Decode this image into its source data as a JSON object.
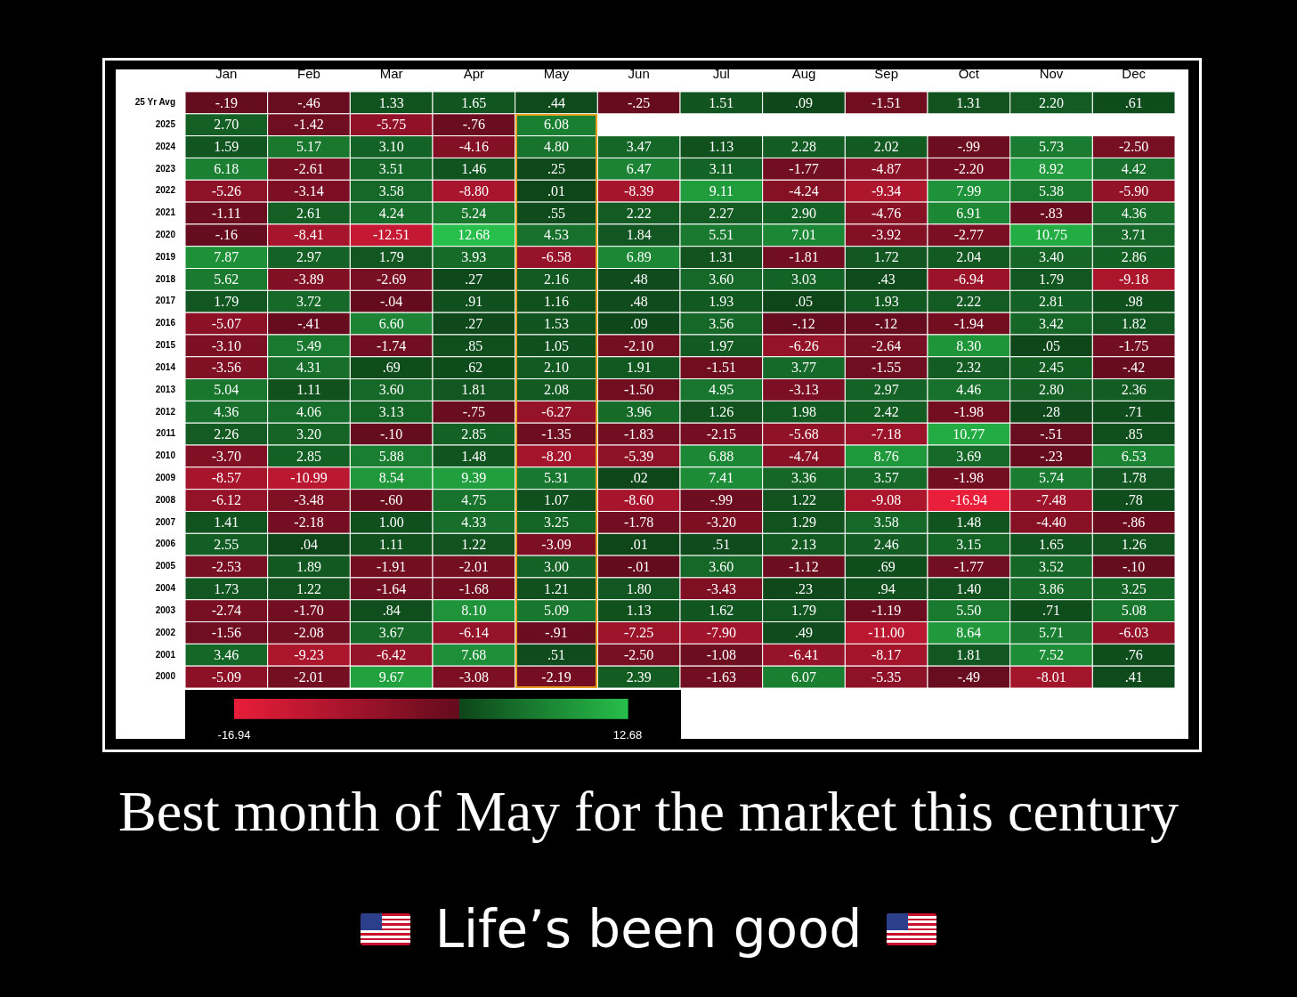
{
  "chart_data": {
    "type": "heatmap",
    "title": "Best month of May for the market this century",
    "subtitle": "Life’s been good",
    "categories": [
      "Jan",
      "Feb",
      "Mar",
      "Apr",
      "May",
      "Jun",
      "Jul",
      "Aug",
      "Sep",
      "Oct",
      "Nov",
      "Dec"
    ],
    "y_categories": [
      "25 Yr Avg",
      "2025",
      "2024",
      "2023",
      "2022",
      "2021",
      "2020",
      "2019",
      "2018",
      "2017",
      "2016",
      "2015",
      "2014",
      "2013",
      "2012",
      "2011",
      "2010",
      "2009",
      "2008",
      "2007",
      "2006",
      "2005",
      "2004",
      "2003",
      "2002",
      "2001",
      "2000"
    ],
    "cells": [
      [
        -0.19,
        -0.46,
        1.33,
        1.65,
        0.44,
        -0.25,
        1.51,
        0.09,
        -1.51,
        1.31,
        2.2,
        0.61
      ],
      [
        2.7,
        -1.42,
        -5.75,
        -0.76,
        6.08,
        null,
        null,
        null,
        null,
        null,
        null,
        null
      ],
      [
        1.59,
        5.17,
        3.1,
        -4.16,
        4.8,
        3.47,
        1.13,
        2.28,
        2.02,
        -0.99,
        5.73,
        -2.5
      ],
      [
        6.18,
        -2.61,
        3.51,
        1.46,
        0.25,
        6.47,
        3.11,
        -1.77,
        -4.87,
        -2.2,
        8.92,
        4.42
      ],
      [
        -5.26,
        -3.14,
        3.58,
        -8.8,
        0.01,
        -8.39,
        9.11,
        -4.24,
        -9.34,
        7.99,
        5.38,
        -5.9
      ],
      [
        -1.11,
        2.61,
        4.24,
        5.24,
        0.55,
        2.22,
        2.27,
        2.9,
        -4.76,
        6.91,
        -0.83,
        4.36
      ],
      [
        -0.16,
        -8.41,
        -12.51,
        12.68,
        4.53,
        1.84,
        5.51,
        7.01,
        -3.92,
        -2.77,
        10.75,
        3.71
      ],
      [
        7.87,
        2.97,
        1.79,
        3.93,
        -6.58,
        6.89,
        1.31,
        -1.81,
        1.72,
        2.04,
        3.4,
        2.86
      ],
      [
        5.62,
        -3.89,
        -2.69,
        0.27,
        2.16,
        0.48,
        3.6,
        3.03,
        0.43,
        -6.94,
        1.79,
        -9.18
      ],
      [
        1.79,
        3.72,
        -0.04,
        0.91,
        1.16,
        0.48,
        1.93,
        0.05,
        1.93,
        2.22,
        2.81,
        0.98
      ],
      [
        -5.07,
        -0.41,
        6.6,
        0.27,
        1.53,
        0.09,
        3.56,
        -0.12,
        -0.12,
        -1.94,
        3.42,
        1.82
      ],
      [
        -3.1,
        5.49,
        -1.74,
        0.85,
        1.05,
        -2.1,
        1.97,
        -6.26,
        -2.64,
        8.3,
        0.05,
        -1.75
      ],
      [
        -3.56,
        4.31,
        0.69,
        0.62,
        2.1,
        1.91,
        -1.51,
        3.77,
        -1.55,
        2.32,
        2.45,
        -0.42
      ],
      [
        5.04,
        1.11,
        3.6,
        1.81,
        2.08,
        -1.5,
        4.95,
        -3.13,
        2.97,
        4.46,
        2.8,
        2.36
      ],
      [
        4.36,
        4.06,
        3.13,
        -0.75,
        -6.27,
        3.96,
        1.26,
        1.98,
        2.42,
        -1.98,
        0.28,
        0.71
      ],
      [
        2.26,
        3.2,
        -0.1,
        2.85,
        -1.35,
        -1.83,
        -2.15,
        -5.68,
        -7.18,
        10.77,
        -0.51,
        0.85
      ],
      [
        -3.7,
        2.85,
        5.88,
        1.48,
        -8.2,
        -5.39,
        6.88,
        -4.74,
        8.76,
        3.69,
        -0.23,
        6.53
      ],
      [
        -8.57,
        -10.99,
        8.54,
        9.39,
        5.31,
        0.02,
        7.41,
        3.36,
        3.57,
        -1.98,
        5.74,
        1.78
      ],
      [
        -6.12,
        -3.48,
        -0.6,
        4.75,
        1.07,
        -8.6,
        -0.99,
        1.22,
        -9.08,
        -16.94,
        -7.48,
        0.78
      ],
      [
        1.41,
        -2.18,
        1.0,
        4.33,
        3.25,
        -1.78,
        -3.2,
        1.29,
        3.58,
        1.48,
        -4.4,
        -0.86
      ],
      [
        2.55,
        0.04,
        1.11,
        1.22,
        -3.09,
        0.01,
        0.51,
        2.13,
        2.46,
        3.15,
        1.65,
        1.26
      ],
      [
        -2.53,
        1.89,
        -1.91,
        -2.01,
        3.0,
        -0.01,
        3.6,
        -1.12,
        0.69,
        -1.77,
        3.52,
        -0.1
      ],
      [
        1.73,
        1.22,
        -1.64,
        -1.68,
        1.21,
        1.8,
        -3.43,
        0.23,
        0.94,
        1.4,
        3.86,
        3.25
      ],
      [
        -2.74,
        -1.7,
        0.84,
        8.1,
        5.09,
        1.13,
        1.62,
        1.79,
        -1.19,
        5.5,
        0.71,
        5.08
      ],
      [
        -1.56,
        -2.08,
        3.67,
        -6.14,
        -0.91,
        -7.25,
        -7.9,
        0.49,
        -11.0,
        8.64,
        5.71,
        -6.03
      ],
      [
        3.46,
        -9.23,
        -6.42,
        7.68,
        0.51,
        -2.5,
        -1.08,
        -6.41,
        -8.17,
        1.81,
        7.52,
        0.76
      ],
      [
        -5.09,
        -2.01,
        9.67,
        -3.08,
        -2.19,
        2.39,
        -1.63,
        6.07,
        -5.35,
        -0.49,
        -8.01,
        0.41
      ]
    ],
    "cell_labels": [
      [
        "-.19",
        "-.46",
        "1.33",
        "1.65",
        ".44",
        "-.25",
        "1.51",
        ".09",
        "-1.51",
        "1.31",
        "2.20",
        ".61"
      ],
      [
        "2.70",
        "-1.42",
        "-5.75",
        "-.76",
        "6.08",
        null,
        null,
        null,
        null,
        null,
        null,
        null
      ],
      [
        "1.59",
        "5.17",
        "3.10",
        "-4.16",
        "4.80",
        "3.47",
        "1.13",
        "2.28",
        "2.02",
        "-.99",
        "5.73",
        "-2.50"
      ],
      [
        "6.18",
        "-2.61",
        "3.51",
        "1.46",
        ".25",
        "6.47",
        "3.11",
        "-1.77",
        "-4.87",
        "-2.20",
        "8.92",
        "4.42"
      ],
      [
        "-5.26",
        "-3.14",
        "3.58",
        "-8.80",
        ".01",
        "-8.39",
        "9.11",
        "-4.24",
        "-9.34",
        "7.99",
        "5.38",
        "-5.90"
      ],
      [
        "-1.11",
        "2.61",
        "4.24",
        "5.24",
        ".55",
        "2.22",
        "2.27",
        "2.90",
        "-4.76",
        "6.91",
        "-.83",
        "4.36"
      ],
      [
        "-.16",
        "-8.41",
        "-12.51",
        "12.68",
        "4.53",
        "1.84",
        "5.51",
        "7.01",
        "-3.92",
        "-2.77",
        "10.75",
        "3.71"
      ],
      [
        "7.87",
        "2.97",
        "1.79",
        "3.93",
        "-6.58",
        "6.89",
        "1.31",
        "-1.81",
        "1.72",
        "2.04",
        "3.40",
        "2.86"
      ],
      [
        "5.62",
        "-3.89",
        "-2.69",
        ".27",
        "2.16",
        ".48",
        "3.60",
        "3.03",
        ".43",
        "-6.94",
        "1.79",
        "-9.18"
      ],
      [
        "1.79",
        "3.72",
        "-.04",
        ".91",
        "1.16",
        ".48",
        "1.93",
        ".05",
        "1.93",
        "2.22",
        "2.81",
        ".98"
      ],
      [
        "-5.07",
        "-.41",
        "6.60",
        ".27",
        "1.53",
        ".09",
        "3.56",
        "-.12",
        "-.12",
        "-1.94",
        "3.42",
        "1.82"
      ],
      [
        "-3.10",
        "5.49",
        "-1.74",
        ".85",
        "1.05",
        "-2.10",
        "1.97",
        "-6.26",
        "-2.64",
        "8.30",
        ".05",
        "-1.75"
      ],
      [
        "-3.56",
        "4.31",
        ".69",
        ".62",
        "2.10",
        "1.91",
        "-1.51",
        "3.77",
        "-1.55",
        "2.32",
        "2.45",
        "-.42"
      ],
      [
        "5.04",
        "1.11",
        "3.60",
        "1.81",
        "2.08",
        "-1.50",
        "4.95",
        "-3.13",
        "2.97",
        "4.46",
        "2.80",
        "2.36"
      ],
      [
        "4.36",
        "4.06",
        "3.13",
        "-.75",
        "-6.27",
        "3.96",
        "1.26",
        "1.98",
        "2.42",
        "-1.98",
        ".28",
        ".71"
      ],
      [
        "2.26",
        "3.20",
        "-.10",
        "2.85",
        "-1.35",
        "-1.83",
        "-2.15",
        "-5.68",
        "-7.18",
        "10.77",
        "-.51",
        ".85"
      ],
      [
        "-3.70",
        "2.85",
        "5.88",
        "1.48",
        "-8.20",
        "-5.39",
        "6.88",
        "-4.74",
        "8.76",
        "3.69",
        "-.23",
        "6.53"
      ],
      [
        "-8.57",
        "-10.99",
        "8.54",
        "9.39",
        "5.31",
        ".02",
        "7.41",
        "3.36",
        "3.57",
        "-1.98",
        "5.74",
        "1.78"
      ],
      [
        "-6.12",
        "-3.48",
        "-.60",
        "4.75",
        "1.07",
        "-8.60",
        "-.99",
        "1.22",
        "-9.08",
        "-16.94",
        "-7.48",
        ".78"
      ],
      [
        "1.41",
        "-2.18",
        "1.00",
        "4.33",
        "3.25",
        "-1.78",
        "-3.20",
        "1.29",
        "3.58",
        "1.48",
        "-4.40",
        "-.86"
      ],
      [
        "2.55",
        ".04",
        "1.11",
        "1.22",
        "-3.09",
        ".01",
        ".51",
        "2.13",
        "2.46",
        "3.15",
        "1.65",
        "1.26"
      ],
      [
        "-2.53",
        "1.89",
        "-1.91",
        "-2.01",
        "3.00",
        "-.01",
        "3.60",
        "-1.12",
        ".69",
        "-1.77",
        "3.52",
        "-.10"
      ],
      [
        "1.73",
        "1.22",
        "-1.64",
        "-1.68",
        "1.21",
        "1.80",
        "-3.43",
        ".23",
        ".94",
        "1.40",
        "3.86",
        "3.25"
      ],
      [
        "-2.74",
        "-1.70",
        ".84",
        "8.10",
        "5.09",
        "1.13",
        "1.62",
        "1.79",
        "-1.19",
        "5.50",
        ".71",
        "5.08"
      ],
      [
        "-1.56",
        "-2.08",
        "3.67",
        "-6.14",
        "-.91",
        "-7.25",
        "-7.90",
        ".49",
        "-11.00",
        "8.64",
        "5.71",
        "-6.03"
      ],
      [
        "3.46",
        "-9.23",
        "-6.42",
        "7.68",
        ".51",
        "-2.50",
        "-1.08",
        "-6.41",
        "-8.17",
        "1.81",
        "7.52",
        ".76"
      ],
      [
        "-5.09",
        "-2.01",
        "9.67",
        "-3.08",
        "-2.19",
        "2.39",
        "-1.63",
        "6.07",
        "-5.35",
        "-.49",
        "-8.01",
        ".41"
      ]
    ],
    "clim": [
      -16.94,
      12.68
    ],
    "cticks": [
      -16.94,
      12.68
    ]
  }
}
